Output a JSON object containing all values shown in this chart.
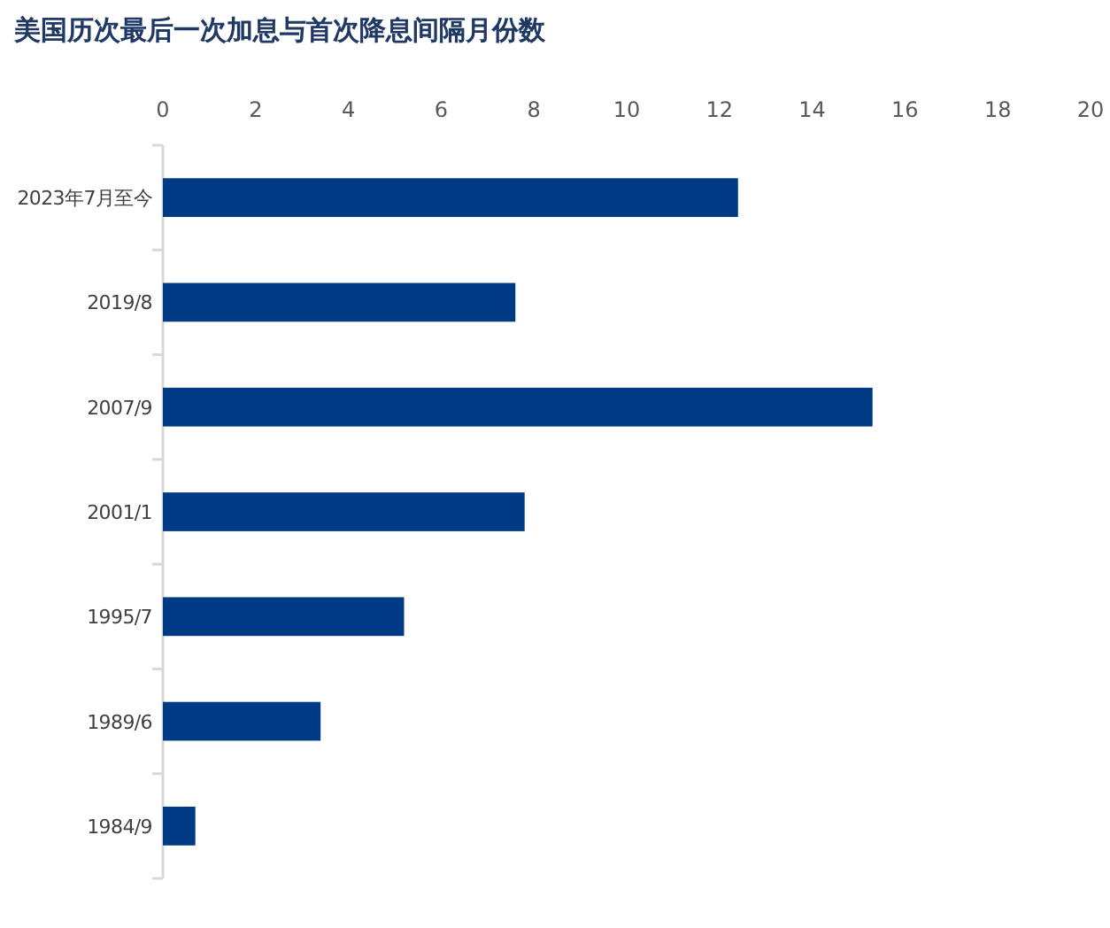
{
  "chart_data": {
    "type": "bar",
    "orientation": "horizontal",
    "title": "美国历次最后一次加息与首次降息间隔月份数",
    "categories": [
      "2023年7月至今",
      "2019/8",
      "2007/9",
      "2001/1",
      "1995/7",
      "1989/6",
      "1984/9"
    ],
    "values": [
      12.4,
      7.6,
      15.3,
      7.8,
      5.2,
      3.4,
      0.7
    ],
    "color": "#003a84",
    "xlim": [
      0,
      20
    ],
    "xticks": [
      0,
      2,
      4,
      6,
      8,
      10,
      12,
      14,
      16,
      18,
      20
    ],
    "grid": false
  }
}
